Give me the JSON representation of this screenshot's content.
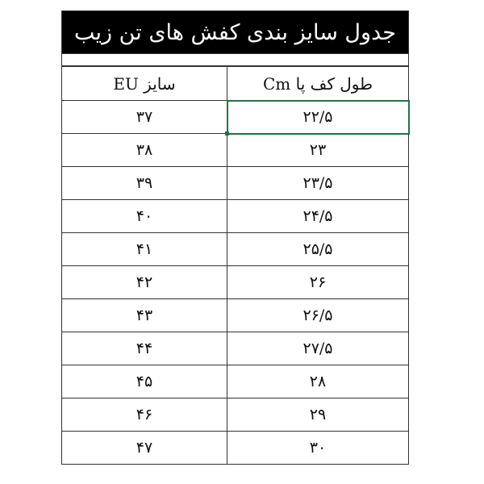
{
  "title": "جدول سایز بندی کفش های تن زیب",
  "headers": {
    "eu": "سایز EU",
    "cm": "طول کف پا Cm"
  },
  "rows": [
    {
      "eu": "۳۷",
      "cm": "۲۲/۵"
    },
    {
      "eu": "۳۸",
      "cm": "۲۳"
    },
    {
      "eu": "۳۹",
      "cm": "۲۳/۵"
    },
    {
      "eu": "۴۰",
      "cm": "۲۴/۵"
    },
    {
      "eu": "۴۱",
      "cm": "۲۵/۵"
    },
    {
      "eu": "۴۲",
      "cm": "۲۶"
    },
    {
      "eu": "۴۳",
      "cm": "۲۶/۵"
    },
    {
      "eu": "۴۴",
      "cm": "۲۷/۵"
    },
    {
      "eu": "۴۵",
      "cm": "۲۸"
    },
    {
      "eu": "۴۶",
      "cm": "۲۹"
    },
    {
      "eu": "۴۷",
      "cm": "۳۰"
    }
  ],
  "colors": {
    "header_bg": "#000000",
    "selection": "#217346"
  }
}
